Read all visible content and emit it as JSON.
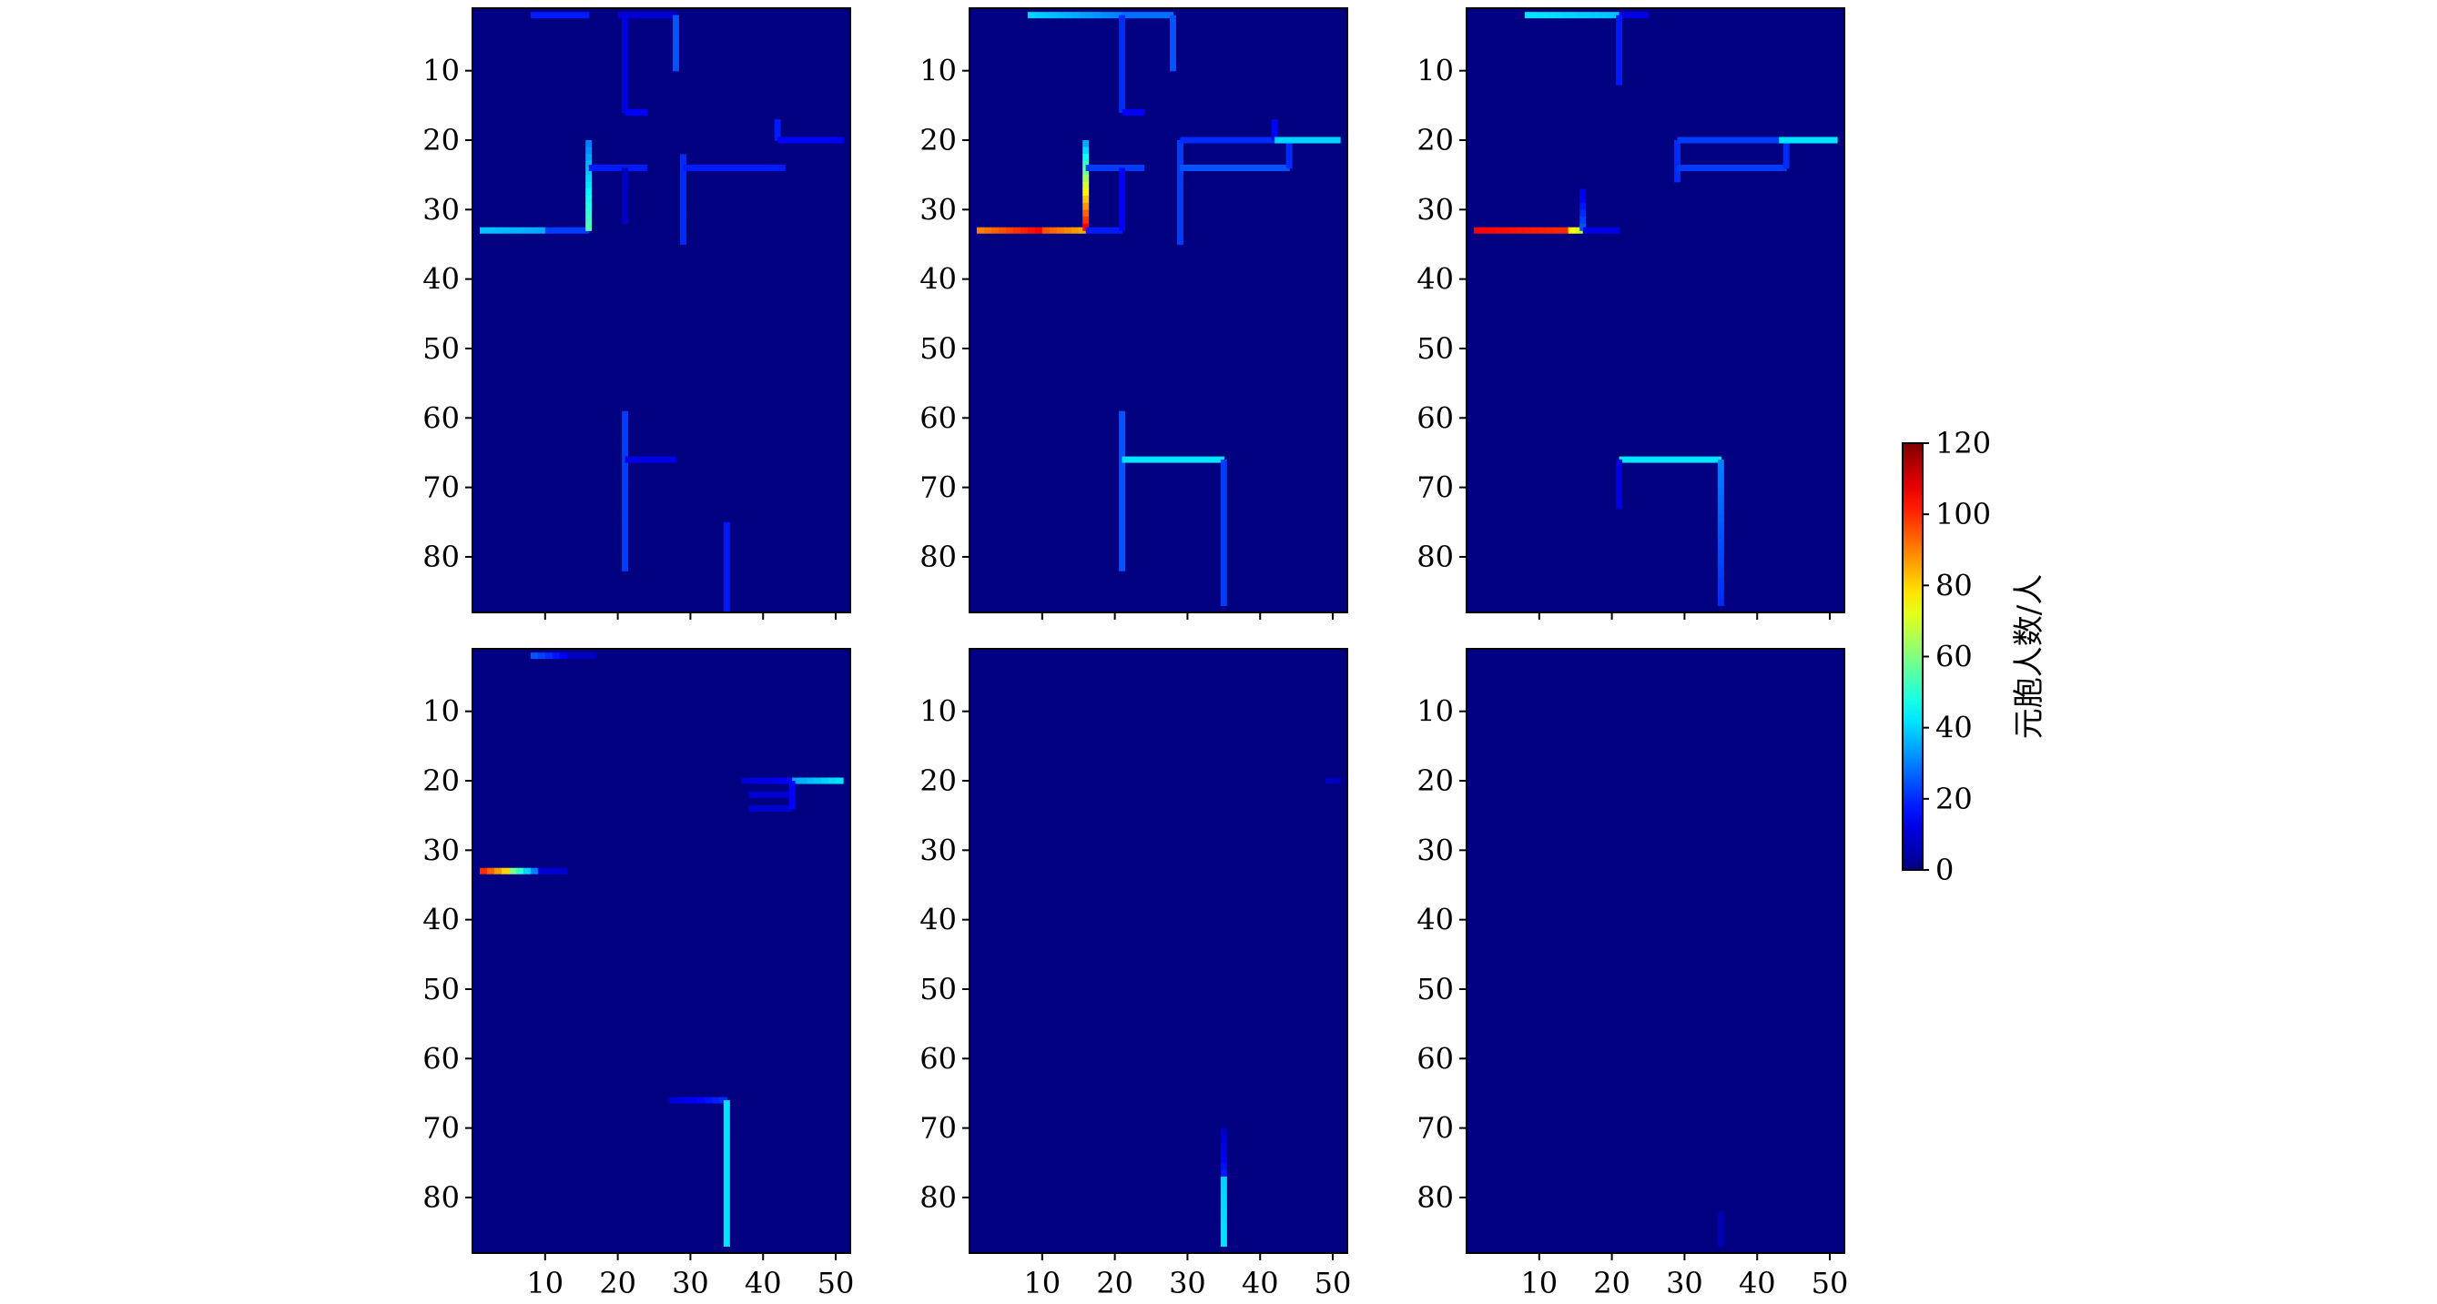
{
  "figure": {
    "colormap": "jet",
    "background_color": "#00008b"
  },
  "colorbar": {
    "label": "元胞人数/人",
    "min": 0,
    "max": 120,
    "ticks": [
      0,
      20,
      40,
      60,
      80,
      100,
      120
    ],
    "tick_labels": [
      "0",
      "20",
      "40",
      "60",
      "80",
      "100",
      "120"
    ]
  },
  "chart_data": [
    {
      "type": "heatmap",
      "panel": "top-left",
      "xlim": [
        0,
        52
      ],
      "ylim": [
        88,
        1
      ],
      "x_ticks": [
        10,
        20,
        30,
        40,
        50
      ],
      "x_tick_labels_visible": false,
      "y_ticks": [
        10,
        20,
        30,
        40,
        50,
        60,
        70,
        80
      ],
      "y_tick_labels": [
        "10",
        "20",
        "30",
        "40",
        "50",
        "60",
        "70",
        "80"
      ],
      "segments": [
        {
          "x0": 8,
          "y0": 2,
          "x1": 16,
          "y1": 2,
          "v0": 18,
          "v1": 18
        },
        {
          "x0": 20,
          "y0": 2,
          "x1": 28,
          "y1": 2,
          "v0": 10,
          "v1": 10
        },
        {
          "x0": 28,
          "y0": 2,
          "x1": 28,
          "y1": 10,
          "v0": 25,
          "v1": 25
        },
        {
          "x0": 21,
          "y0": 2,
          "x1": 21,
          "y1": 16,
          "v0": 12,
          "v1": 12
        },
        {
          "x0": 21,
          "y0": 16,
          "x1": 24,
          "y1": 16,
          "v0": 15,
          "v1": 15
        },
        {
          "x0": 1,
          "y0": 33,
          "x1": 10,
          "y1": 33,
          "v0": 38,
          "v1": 35
        },
        {
          "x0": 10,
          "y0": 33,
          "x1": 16,
          "y1": 33,
          "v0": 22,
          "v1": 22
        },
        {
          "x0": 16,
          "y0": 20,
          "x1": 16,
          "y1": 33,
          "v0": 30,
          "v1": 55
        },
        {
          "x0": 16,
          "y0": 24,
          "x1": 24,
          "y1": 24,
          "v0": 18,
          "v1": 18
        },
        {
          "x0": 21,
          "y0": 24,
          "x1": 21,
          "y1": 32,
          "v0": 8,
          "v1": 8
        },
        {
          "x0": 29,
          "y0": 22,
          "x1": 29,
          "y1": 35,
          "v0": 20,
          "v1": 20
        },
        {
          "x0": 29,
          "y0": 24,
          "x1": 43,
          "y1": 24,
          "v0": 18,
          "v1": 18
        },
        {
          "x0": 42,
          "y0": 17,
          "x1": 42,
          "y1": 20,
          "v0": 18,
          "v1": 18
        },
        {
          "x0": 42,
          "y0": 20,
          "x1": 51,
          "y1": 20,
          "v0": 15,
          "v1": 15
        },
        {
          "x0": 21,
          "y0": 59,
          "x1": 21,
          "y1": 82,
          "v0": 22,
          "v1": 22
        },
        {
          "x0": 21,
          "y0": 66,
          "x1": 28,
          "y1": 66,
          "v0": 12,
          "v1": 12
        },
        {
          "x0": 35,
          "y0": 75,
          "x1": 35,
          "y1": 88,
          "v0": 18,
          "v1": 18
        }
      ]
    },
    {
      "type": "heatmap",
      "panel": "top-middle",
      "xlim": [
        0,
        52
      ],
      "ylim": [
        88,
        1
      ],
      "x_ticks": [
        10,
        20,
        30,
        40,
        50
      ],
      "x_tick_labels_visible": false,
      "y_ticks": [
        10,
        20,
        30,
        40,
        50,
        60,
        70,
        80
      ],
      "y_tick_labels": [
        "10",
        "20",
        "30",
        "40",
        "50",
        "60",
        "70",
        "80"
      ],
      "segments": [
        {
          "x0": 8,
          "y0": 2,
          "x1": 21,
          "y1": 2,
          "v0": 40,
          "v1": 30
        },
        {
          "x0": 21,
          "y0": 2,
          "x1": 28,
          "y1": 2,
          "v0": 28,
          "v1": 28
        },
        {
          "x0": 28,
          "y0": 2,
          "x1": 28,
          "y1": 10,
          "v0": 25,
          "v1": 25
        },
        {
          "x0": 21,
          "y0": 2,
          "x1": 21,
          "y1": 16,
          "v0": 20,
          "v1": 20
        },
        {
          "x0": 21,
          "y0": 16,
          "x1": 24,
          "y1": 16,
          "v0": 15,
          "v1": 15
        },
        {
          "x0": 1,
          "y0": 33,
          "x1": 10,
          "y1": 33,
          "v0": 90,
          "v1": 105
        },
        {
          "x0": 10,
          "y0": 33,
          "x1": 16,
          "y1": 33,
          "v0": 95,
          "v1": 85
        },
        {
          "x0": 16,
          "y0": 20,
          "x1": 16,
          "y1": 33,
          "v0": 35,
          "v1": 105
        },
        {
          "x0": 16,
          "y0": 33,
          "x1": 21,
          "y1": 33,
          "v0": 18,
          "v1": 18
        },
        {
          "x0": 16,
          "y0": 24,
          "x1": 24,
          "y1": 24,
          "v0": 22,
          "v1": 22
        },
        {
          "x0": 21,
          "y0": 24,
          "x1": 21,
          "y1": 33,
          "v0": 15,
          "v1": 15
        },
        {
          "x0": 29,
          "y0": 20,
          "x1": 29,
          "y1": 35,
          "v0": 22,
          "v1": 22
        },
        {
          "x0": 29,
          "y0": 20,
          "x1": 43,
          "y1": 20,
          "v0": 20,
          "v1": 20
        },
        {
          "x0": 29,
          "y0": 24,
          "x1": 44,
          "y1": 24,
          "v0": 25,
          "v1": 25
        },
        {
          "x0": 44,
          "y0": 20,
          "x1": 44,
          "y1": 24,
          "v0": 20,
          "v1": 20
        },
        {
          "x0": 42,
          "y0": 17,
          "x1": 42,
          "y1": 20,
          "v0": 15,
          "v1": 15
        },
        {
          "x0": 42,
          "y0": 20,
          "x1": 51,
          "y1": 20,
          "v0": 40,
          "v1": 40
        },
        {
          "x0": 21,
          "y0": 59,
          "x1": 21,
          "y1": 82,
          "v0": 25,
          "v1": 25
        },
        {
          "x0": 21,
          "y0": 66,
          "x1": 35,
          "y1": 66,
          "v0": 42,
          "v1": 42
        },
        {
          "x0": 35,
          "y0": 66,
          "x1": 35,
          "y1": 87,
          "v0": 22,
          "v1": 22
        }
      ]
    },
    {
      "type": "heatmap",
      "panel": "top-right",
      "xlim": [
        0,
        52
      ],
      "ylim": [
        88,
        1
      ],
      "x_ticks": [
        10,
        20,
        30,
        40,
        50
      ],
      "x_tick_labels_visible": false,
      "y_ticks": [
        10,
        20,
        30,
        40,
        50,
        60,
        70,
        80
      ],
      "y_tick_labels": [
        "10",
        "20",
        "30",
        "40",
        "50",
        "60",
        "70",
        "80"
      ],
      "segments": [
        {
          "x0": 8,
          "y0": 2,
          "x1": 21,
          "y1": 2,
          "v0": 42,
          "v1": 38
        },
        {
          "x0": 21,
          "y0": 2,
          "x1": 25,
          "y1": 2,
          "v0": 12,
          "v1": 12
        },
        {
          "x0": 21,
          "y0": 2,
          "x1": 21,
          "y1": 12,
          "v0": 18,
          "v1": 18
        },
        {
          "x0": 1,
          "y0": 33,
          "x1": 14,
          "y1": 33,
          "v0": 105,
          "v1": 100
        },
        {
          "x0": 14,
          "y0": 33,
          "x1": 16,
          "y1": 33,
          "v0": 75,
          "v1": 70
        },
        {
          "x0": 16,
          "y0": 27,
          "x1": 16,
          "y1": 33,
          "v0": 12,
          "v1": 25
        },
        {
          "x0": 16,
          "y0": 33,
          "x1": 21,
          "y1": 33,
          "v0": 12,
          "v1": 12
        },
        {
          "x0": 29,
          "y0": 20,
          "x1": 29,
          "y1": 26,
          "v0": 20,
          "v1": 20
        },
        {
          "x0": 29,
          "y0": 20,
          "x1": 43,
          "y1": 20,
          "v0": 22,
          "v1": 22
        },
        {
          "x0": 29,
          "y0": 24,
          "x1": 44,
          "y1": 24,
          "v0": 22,
          "v1": 22
        },
        {
          "x0": 44,
          "y0": 20,
          "x1": 44,
          "y1": 24,
          "v0": 20,
          "v1": 20
        },
        {
          "x0": 43,
          "y0": 20,
          "x1": 51,
          "y1": 20,
          "v0": 42,
          "v1": 42
        },
        {
          "x0": 21,
          "y0": 66,
          "x1": 35,
          "y1": 66,
          "v0": 42,
          "v1": 42
        },
        {
          "x0": 21,
          "y0": 66,
          "x1": 21,
          "y1": 73,
          "v0": 12,
          "v1": 12
        },
        {
          "x0": 35,
          "y0": 66,
          "x1": 35,
          "y1": 87,
          "v0": 30,
          "v1": 20
        }
      ]
    },
    {
      "type": "heatmap",
      "panel": "bottom-left",
      "xlim": [
        0,
        52
      ],
      "ylim": [
        88,
        1
      ],
      "x_ticks": [
        10,
        20,
        30,
        40,
        50
      ],
      "x_tick_labels": [
        "10",
        "20",
        "30",
        "40",
        "50"
      ],
      "y_ticks": [
        10,
        20,
        30,
        40,
        50,
        60,
        70,
        80
      ],
      "y_tick_labels": [
        "10",
        "20",
        "30",
        "40",
        "50",
        "60",
        "70",
        "80"
      ],
      "segments": [
        {
          "x0": 8,
          "y0": 2,
          "x1": 13,
          "y1": 2,
          "v0": 25,
          "v1": 15
        },
        {
          "x0": 13,
          "y0": 2,
          "x1": 17,
          "y1": 2,
          "v0": 8,
          "v1": 8
        },
        {
          "x0": 1,
          "y0": 33,
          "x1": 5,
          "y1": 33,
          "v0": 100,
          "v1": 80
        },
        {
          "x0": 5,
          "y0": 33,
          "x1": 9,
          "y1": 33,
          "v0": 60,
          "v1": 30
        },
        {
          "x0": 9,
          "y0": 33,
          "x1": 13,
          "y1": 33,
          "v0": 10,
          "v1": 10
        },
        {
          "x0": 37,
          "y0": 20,
          "x1": 44,
          "y1": 20,
          "v0": 10,
          "v1": 14
        },
        {
          "x0": 44,
          "y0": 20,
          "x1": 51,
          "y1": 20,
          "v0": 35,
          "v1": 42
        },
        {
          "x0": 38,
          "y0": 22,
          "x1": 44,
          "y1": 22,
          "v0": 10,
          "v1": 10
        },
        {
          "x0": 38,
          "y0": 24,
          "x1": 44,
          "y1": 24,
          "v0": 10,
          "v1": 10
        },
        {
          "x0": 44,
          "y0": 20,
          "x1": 44,
          "y1": 24,
          "v0": 15,
          "v1": 15
        },
        {
          "x0": 27,
          "y0": 66,
          "x1": 35,
          "y1": 66,
          "v0": 10,
          "v1": 20
        },
        {
          "x0": 35,
          "y0": 66,
          "x1": 35,
          "y1": 87,
          "v0": 42,
          "v1": 42
        }
      ]
    },
    {
      "type": "heatmap",
      "panel": "bottom-middle",
      "xlim": [
        0,
        52
      ],
      "ylim": [
        88,
        1
      ],
      "x_ticks": [
        10,
        20,
        30,
        40,
        50
      ],
      "x_tick_labels": [
        "10",
        "20",
        "30",
        "40",
        "50"
      ],
      "y_ticks": [
        10,
        20,
        30,
        40,
        50,
        60,
        70,
        80
      ],
      "y_tick_labels": [
        "10",
        "20",
        "30",
        "40",
        "50",
        "60",
        "70",
        "80"
      ],
      "segments": [
        {
          "x0": 49,
          "y0": 20,
          "x1": 51,
          "y1": 20,
          "v0": 8,
          "v1": 8
        },
        {
          "x0": 35,
          "y0": 70,
          "x1": 35,
          "y1": 77,
          "v0": 8,
          "v1": 18
        },
        {
          "x0": 35,
          "y0": 77,
          "x1": 35,
          "y1": 87,
          "v0": 40,
          "v1": 42
        }
      ]
    },
    {
      "type": "heatmap",
      "panel": "bottom-right",
      "xlim": [
        0,
        52
      ],
      "ylim": [
        88,
        1
      ],
      "x_ticks": [
        10,
        20,
        30,
        40,
        50
      ],
      "x_tick_labels": [
        "10",
        "20",
        "30",
        "40",
        "50"
      ],
      "y_ticks": [
        10,
        20,
        30,
        40,
        50,
        60,
        70,
        80
      ],
      "y_tick_labels": [
        "10",
        "20",
        "30",
        "40",
        "50",
        "60",
        "70",
        "80"
      ],
      "segments": [
        {
          "x0": 35,
          "y0": 82,
          "x1": 35,
          "y1": 87,
          "v0": 6,
          "v1": 6
        }
      ]
    }
  ]
}
